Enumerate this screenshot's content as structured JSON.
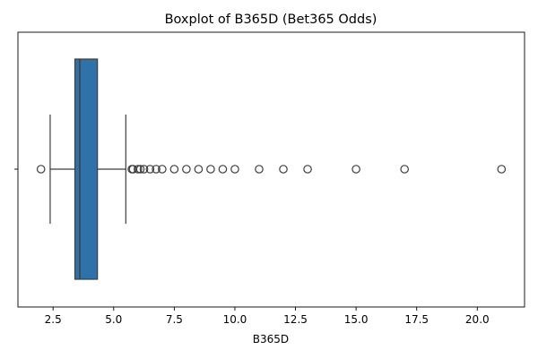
{
  "chart_data": {
    "type": "boxplot",
    "title": "Boxplot of B365D (Bet365 Odds)",
    "xlabel": "B365D",
    "ylabel": "",
    "orientation": "horizontal",
    "xlim": [
      1.05,
      21.95
    ],
    "x_ticks": [
      2.5,
      5.0,
      7.5,
      10.0,
      12.5,
      15.0,
      17.5,
      20.0
    ],
    "x_tick_labels": [
      "2.5",
      "5.0",
      "7.5",
      "10.0",
      "12.5",
      "15.0",
      "17.5",
      "20.0"
    ],
    "y_tick_labels": [
      ""
    ],
    "grid": false,
    "box_color": "#2f72aa",
    "stats": {
      "whisker_low": 2.38,
      "q1": 3.4,
      "median": 3.6,
      "q3": 4.33,
      "whisker_high": 5.5
    },
    "outliers": [
      2.0,
      5.75,
      5.8,
      6.0,
      6.1,
      6.25,
      6.5,
      6.75,
      7.0,
      7.5,
      8.0,
      8.5,
      9.0,
      9.5,
      10.0,
      11.0,
      12.0,
      13.0,
      15.0,
      17.0,
      21.0
    ]
  }
}
